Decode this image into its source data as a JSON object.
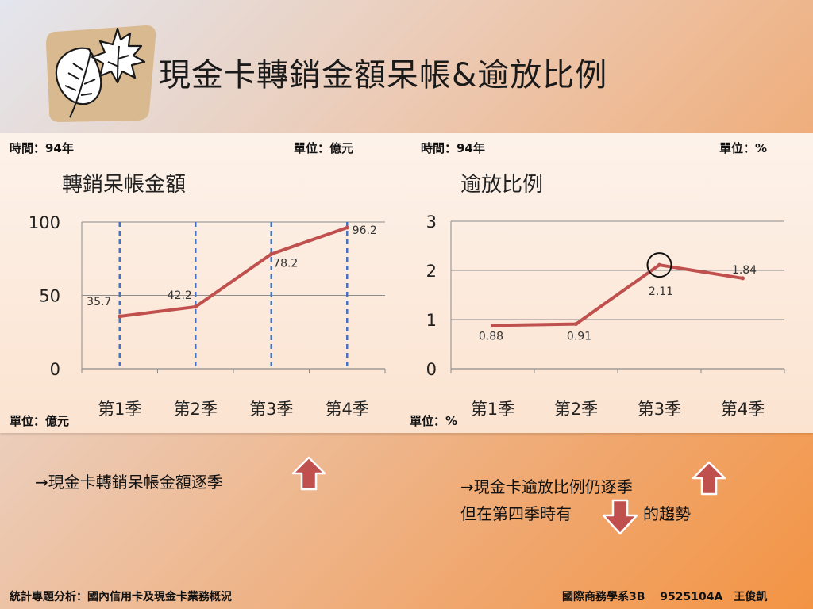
{
  "slide": {
    "title": "現金卡轉銷金額呆帳&逾放比例"
  },
  "left_panel": {
    "time_label": "時間：94年",
    "unit_top": "單位：億元",
    "unit_bottom": "單位：億元"
  },
  "right_panel": {
    "time_label": "時間：94年",
    "unit_top": "單位：%",
    "unit_bottom": "單位：%"
  },
  "chart_data": [
    {
      "type": "line",
      "title": "轉銷呆帳金額",
      "categories": [
        "第1季",
        "第2季",
        "第3季",
        "第4季"
      ],
      "values": [
        35.7,
        42.2,
        78.2,
        96.2
      ],
      "data_labels": [
        "35.7",
        "42.2",
        "78.2",
        "96.2"
      ],
      "ylim": [
        0,
        100
      ],
      "yticks": [
        "0",
        "50",
        "100"
      ],
      "ytick_values": [
        0,
        50,
        100
      ],
      "grid": "horizontal",
      "category_dividers": "dashed vertical blue",
      "line_color": "#c0504d",
      "divider_color": "#4472c4"
    },
    {
      "type": "line",
      "title": "逾放比例",
      "categories": [
        "第1季",
        "第2季",
        "第3季",
        "第4季"
      ],
      "values": [
        0.88,
        0.91,
        2.11,
        1.84
      ],
      "data_labels": [
        "0.88",
        "0.91",
        "2.11",
        "1.84"
      ],
      "ylim": [
        0,
        3
      ],
      "yticks": [
        "0",
        "1",
        "2",
        "3"
      ],
      "ytick_values": [
        0,
        1,
        2,
        3
      ],
      "grid": "horizontal",
      "highlight_index": 2,
      "line_color": "#c0504d"
    }
  ],
  "notes": {
    "left": "→現金卡轉銷呆帳金額逐季",
    "right_line1": "→現金卡逾放比例仍逐季",
    "right_line2a": "但在第四季時有",
    "right_line2b": "的趨勢"
  },
  "icons": {
    "logo": "leaf-logo-icon",
    "up": "up-arrow-icon",
    "down": "down-arrow-icon"
  },
  "colors": {
    "arrow_fill": "#c0504d",
    "arrow_stroke": "#ffffff"
  },
  "footer": {
    "left": "統計專題分析：國內信用卡及現金卡業務概況",
    "right": "國際商務學系3B　 9525104A　王俊凱"
  }
}
